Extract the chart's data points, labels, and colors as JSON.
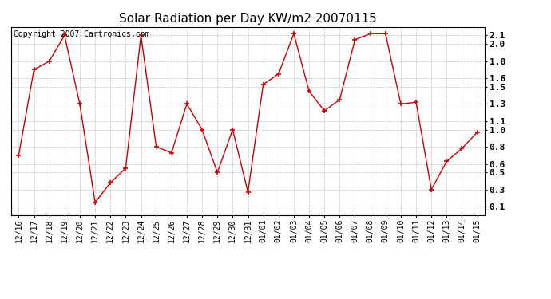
{
  "title": "Solar Radiation per Day KW/m2 20070115",
  "copyright": "Copyright 2007 Cartronics.com",
  "dates": [
    "12/16",
    "12/17",
    "12/18",
    "12/19",
    "12/20",
    "12/21",
    "12/22",
    "12/23",
    "12/24",
    "12/25",
    "12/26",
    "12/27",
    "12/28",
    "12/29",
    "12/30",
    "12/31",
    "01/01",
    "01/02",
    "01/03",
    "01/04",
    "01/05",
    "01/06",
    "01/07",
    "01/08",
    "01/09",
    "01/10",
    "01/11",
    "01/12",
    "01/13",
    "01/14",
    "01/15"
  ],
  "values": [
    0.7,
    1.7,
    1.8,
    2.1,
    1.3,
    0.15,
    0.38,
    0.55,
    2.1,
    0.8,
    0.73,
    1.3,
    1.0,
    0.5,
    1.0,
    0.27,
    1.53,
    1.65,
    2.12,
    1.45,
    1.22,
    1.35,
    2.05,
    2.12,
    2.12,
    1.3,
    1.32,
    0.3,
    0.63,
    0.78,
    0.97
  ],
  "line_color": "#cc0000",
  "marker_color": "#cc0000",
  "bg_color": "#ffffff",
  "plot_bg_color": "#ffffff",
  "grid_color": "#999999",
  "yticks": [
    0.1,
    0.3,
    0.5,
    0.6,
    0.8,
    1.0,
    1.1,
    1.3,
    1.5,
    1.6,
    1.8,
    2.0,
    2.1
  ],
  "ylim": [
    0.0,
    2.2
  ],
  "title_fontsize": 11,
  "copyright_fontsize": 7,
  "tick_fontsize": 7,
  "ytick_fontsize": 8
}
